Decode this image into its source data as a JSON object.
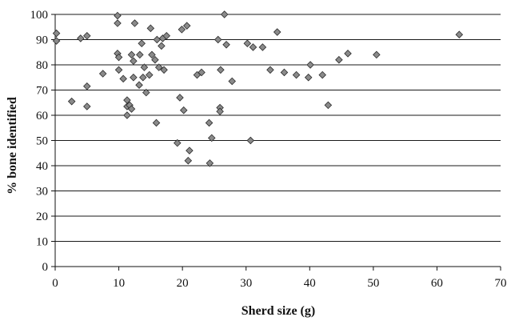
{
  "chart_data": {
    "type": "scatter",
    "xlabel": "Sherd size (g)",
    "ylabel": "% bone identified",
    "xlim": [
      0,
      70
    ],
    "ylim": [
      0,
      100
    ],
    "xticks": [
      0,
      10,
      20,
      30,
      40,
      50,
      60,
      70
    ],
    "yticks": [
      0,
      10,
      20,
      30,
      40,
      50,
      60,
      70,
      80,
      90,
      100
    ],
    "grid": "horizontal",
    "marker": "diamond",
    "marker_color": "#8a8a8a",
    "points": [
      [
        0.2,
        92.5
      ],
      [
        0.2,
        89.5
      ],
      [
        2.6,
        65.5
      ],
      [
        4,
        90.5
      ],
      [
        5,
        91.5
      ],
      [
        5,
        71.5
      ],
      [
        5,
        63.5
      ],
      [
        7.5,
        76.5
      ],
      [
        9.8,
        99.5
      ],
      [
        9.8,
        96.5
      ],
      [
        9.8,
        84.5
      ],
      [
        10,
        83
      ],
      [
        10,
        78
      ],
      [
        10.7,
        74.5
      ],
      [
        11.3,
        66
      ],
      [
        11.3,
        63.5
      ],
      [
        11.3,
        60
      ],
      [
        11.7,
        64
      ],
      [
        12,
        62.5
      ],
      [
        12,
        84
      ],
      [
        12.3,
        81.5
      ],
      [
        12.3,
        75
      ],
      [
        12.5,
        96.5
      ],
      [
        13.2,
        72
      ],
      [
        13.3,
        84
      ],
      [
        13.6,
        88.5
      ],
      [
        13.8,
        75
      ],
      [
        14,
        79
      ],
      [
        14.3,
        69
      ],
      [
        14.8,
        76
      ],
      [
        15,
        94.5
      ],
      [
        15.2,
        84
      ],
      [
        15.7,
        82
      ],
      [
        15.9,
        57
      ],
      [
        16,
        90
      ],
      [
        16.3,
        79
      ],
      [
        16.7,
        87.5
      ],
      [
        16.9,
        90.5
      ],
      [
        17.1,
        78
      ],
      [
        17.5,
        91.5
      ],
      [
        19.2,
        49
      ],
      [
        19.6,
        67
      ],
      [
        19.9,
        94
      ],
      [
        20.2,
        62
      ],
      [
        20.7,
        95.5
      ],
      [
        20.9,
        42
      ],
      [
        21.1,
        46
      ],
      [
        22.3,
        76
      ],
      [
        23,
        77
      ],
      [
        24.2,
        57
      ],
      [
        24.3,
        41
      ],
      [
        24.6,
        51
      ],
      [
        25.6,
        90
      ],
      [
        25.9,
        63
      ],
      [
        25.9,
        61.5
      ],
      [
        26,
        78
      ],
      [
        26.6,
        100
      ],
      [
        26.9,
        88
      ],
      [
        27.8,
        73.5
      ],
      [
        30.2,
        88.5
      ],
      [
        30.7,
        50
      ],
      [
        31.1,
        87
      ],
      [
        32.6,
        87
      ],
      [
        33.8,
        78
      ],
      [
        34.9,
        93
      ],
      [
        36,
        77
      ],
      [
        37.9,
        76
      ],
      [
        39.8,
        75
      ],
      [
        40.1,
        80
      ],
      [
        42,
        76
      ],
      [
        42.9,
        64
      ],
      [
        44.6,
        82
      ],
      [
        46,
        84.5
      ],
      [
        50.5,
        84
      ],
      [
        63.5,
        92
      ]
    ]
  }
}
